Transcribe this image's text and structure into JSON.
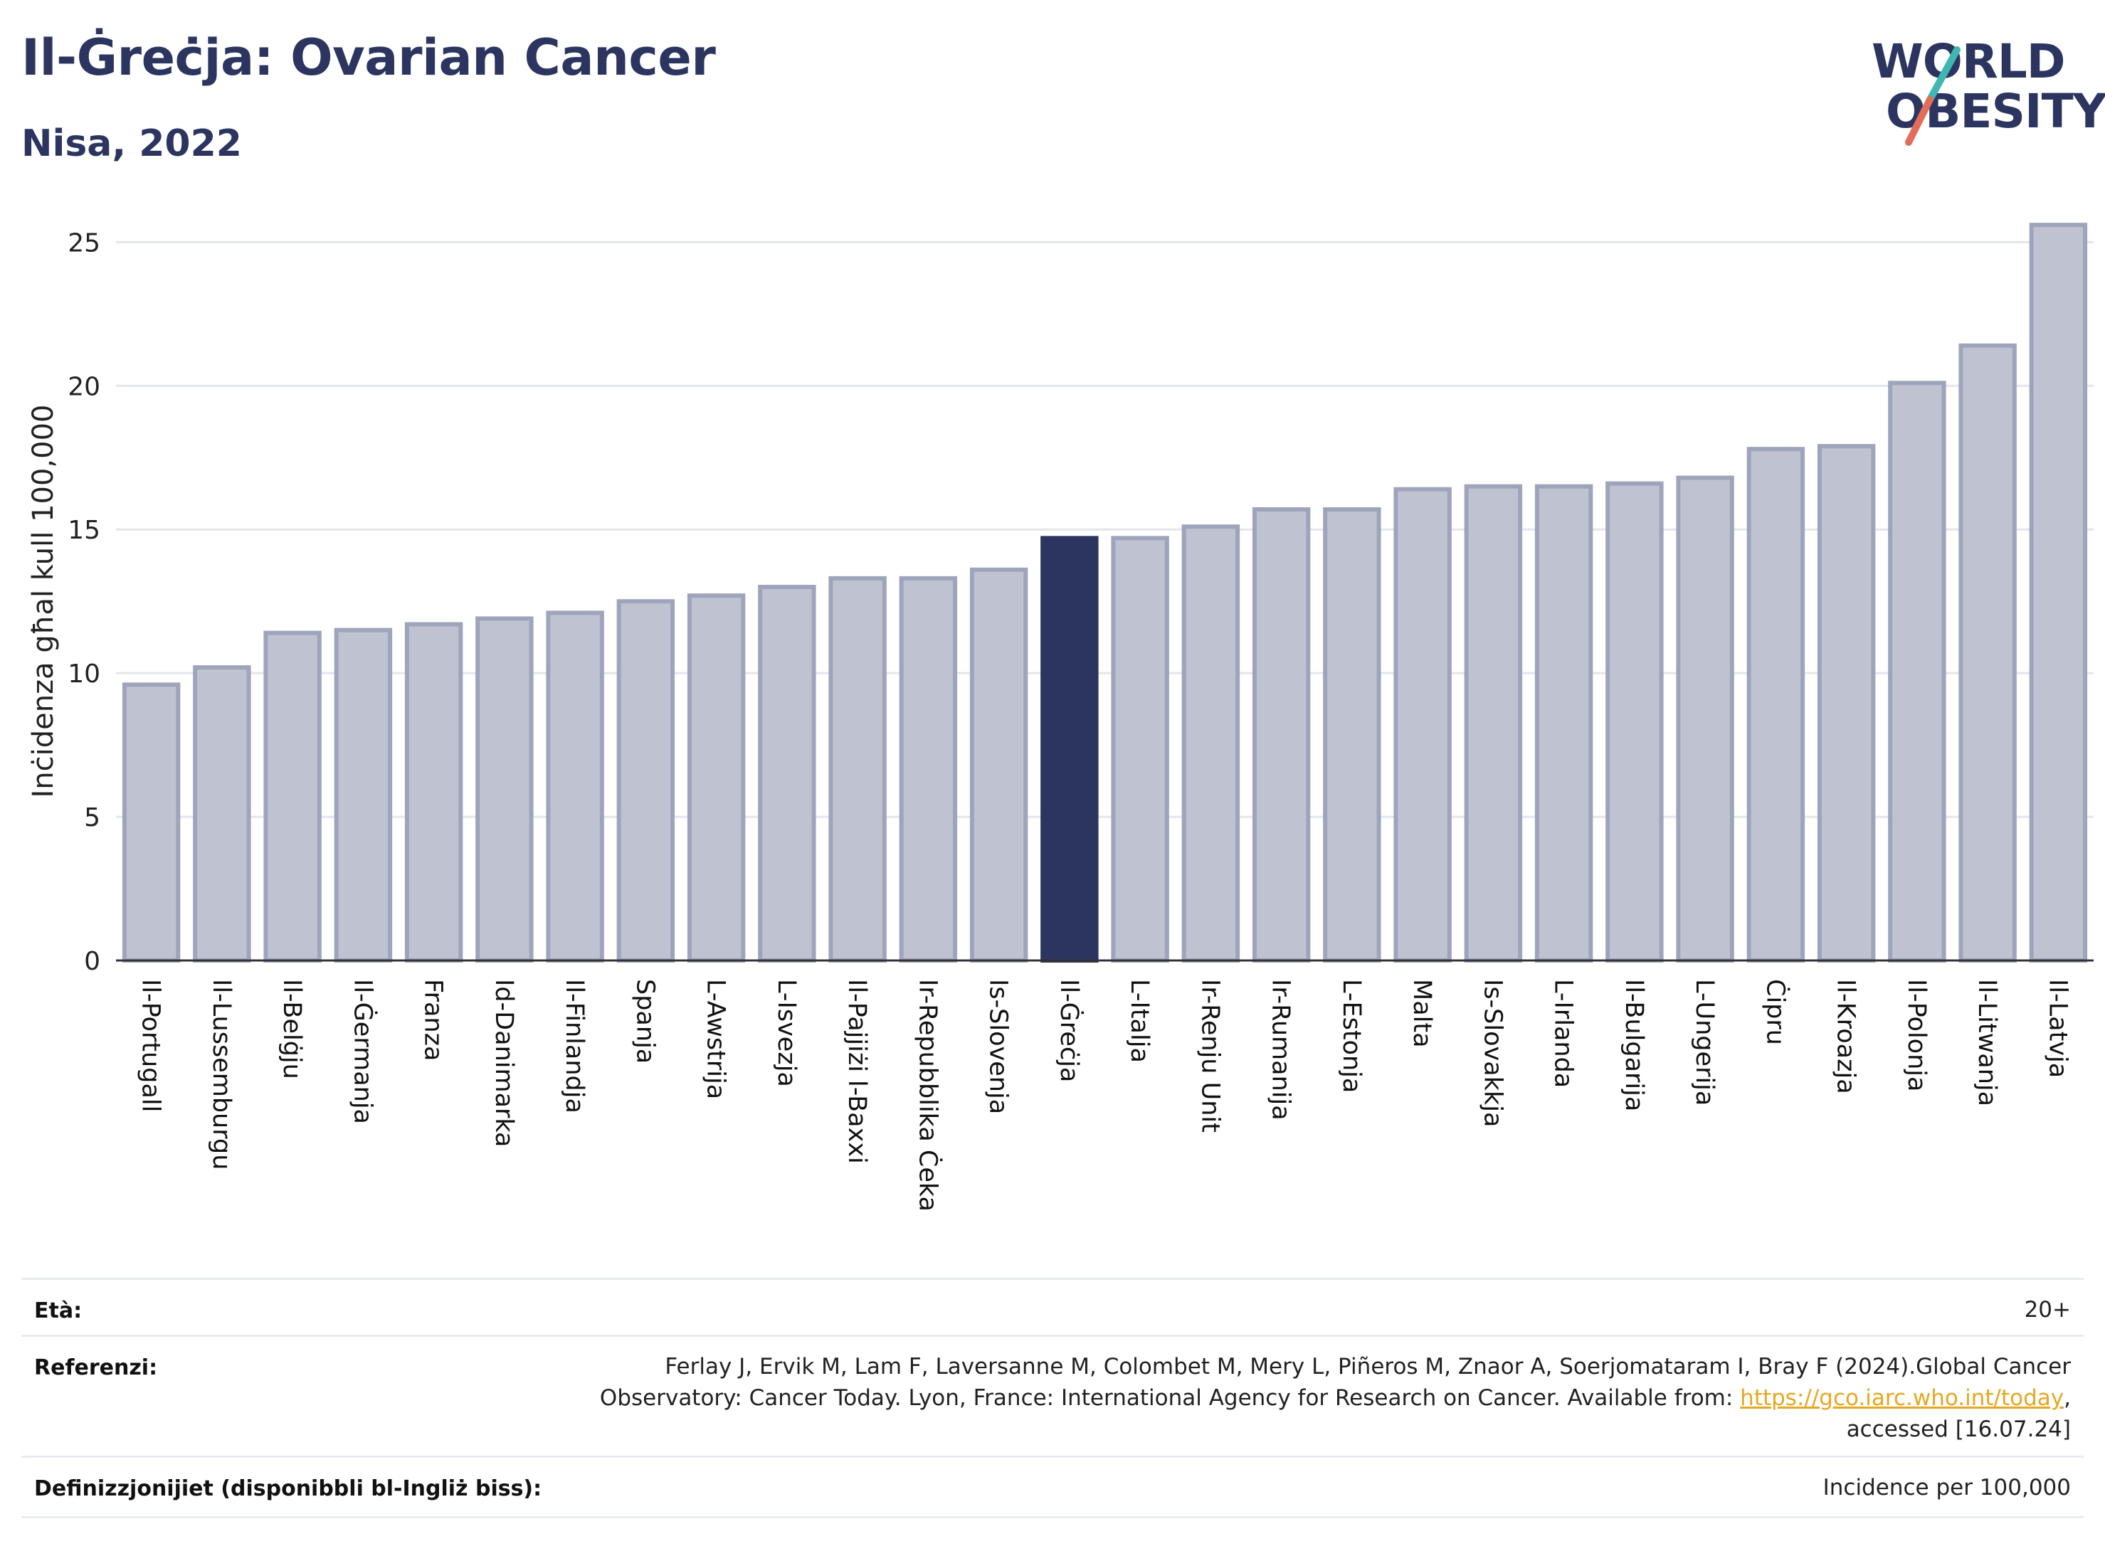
{
  "header": {
    "title": "Il-Ġreċja: Ovarian Cancer",
    "subtitle": "Nisa, 2022"
  },
  "logo": {
    "line1": "WORLD",
    "line2": "OBESITY"
  },
  "colors": {
    "bar": "#bfc3d1",
    "bar_outline": "#9ea4bb",
    "highlight": "#2b3560",
    "grid": "#e3e6ea",
    "accent_teal": "#3fb6b2",
    "accent_red": "#e26d5a"
  },
  "chart_data": {
    "type": "bar",
    "ylabel": "Inċidenza għal kull 100,000",
    "ylim": [
      0,
      26
    ],
    "yticks": [
      0,
      5,
      10,
      15,
      20,
      25
    ],
    "grid": true,
    "highlight": "Il-Ġreċja",
    "categories": [
      "Il-Portugall",
      "Il-Lussemburgu",
      "Il-Belġju",
      "Il-Ġermanja",
      "Franza",
      "Id-Danimarka",
      "Il-Finlandja",
      "Spanja",
      "L-Awstrija",
      "L-Isvezja",
      "Il-Pajjiżi l-Baxxi",
      "Ir-Repubblika Ċeka",
      "Is-Slovenja",
      "Il-Ġreċja",
      "L-Italja",
      "Ir-Renju Unit",
      "Ir-Rumanija",
      "L-Estonja",
      "Malta",
      "Is-Slovakkja",
      "L-Irlanda",
      "Il-Bulgarija",
      "L-Ungerija",
      "Ċipru",
      "Il-Kroazja",
      "Il-Polonja",
      "Il-Litwanja",
      "Il-Latvja"
    ],
    "values": [
      9.6,
      10.2,
      11.4,
      11.5,
      11.7,
      11.9,
      12.1,
      12.5,
      12.7,
      13.0,
      13.3,
      13.3,
      13.6,
      14.7,
      14.7,
      15.1,
      15.7,
      15.7,
      16.4,
      16.5,
      16.5,
      16.6,
      16.8,
      17.8,
      17.9,
      20.1,
      21.4,
      25.6
    ]
  },
  "info": {
    "age_label": "Età:",
    "age_value": "20+",
    "ref_label": "Referenzi:",
    "ref_line1": "Ferlay J, Ervik M, Lam F, Laversanne M, Colombet M, Mery L, Piñeros M, Znaor A, Soerjomataram I, Bray F (2024).Global Cancer",
    "ref_line2": "Observatory: Cancer Today. Lyon, France: International Agency for Research on Cancer. Available from: ",
    "ref_link": "https://gco.iarc.who.int/today",
    "ref_line2_end": ",",
    "ref_line3": "accessed [16.07.24]",
    "def_label": "Definizzjonijiet (disponibbli bl-Ingliż biss):",
    "def_value": "Incidence per 100,000"
  }
}
